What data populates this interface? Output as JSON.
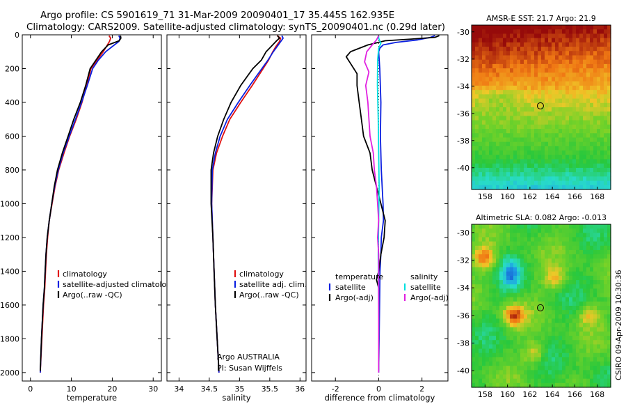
{
  "header": {
    "line1": "Argo profile: CS 5901619_71 31-Mar-2009 20090401_17 35.445S 162.935E",
    "line2": "Climatology: CARS2009. Satellite-adjusted climatology: synTS_20090401.nc (0.29d later)"
  },
  "credits": {
    "argo": "Argo AUSTRALIA",
    "pi": "PI: Susan Wijffels",
    "stamp": "CSIRO 09-Apr-2009 10:30:36"
  },
  "colors": {
    "red": "#e01010",
    "blue": "#0a1fe0",
    "black": "#000000",
    "cyan": "#00e0e0",
    "magenta": "#e020e0"
  },
  "chart_data": [
    {
      "type": "line",
      "panel": "temperature",
      "xlabel": "temperature",
      "ylabel": "",
      "xlim": [
        -2,
        32
      ],
      "ylim": [
        2050,
        0
      ],
      "y_reversed": true,
      "xticks": [
        0,
        10,
        20,
        30
      ],
      "yticks": [
        0,
        200,
        400,
        600,
        800,
        1000,
        1200,
        1400,
        1600,
        1800,
        2000
      ],
      "legend": [
        "climatology",
        "satellite-adjusted climatology",
        "Argo(..raw -QC)"
      ],
      "legend_position": "lower-right",
      "series": [
        {
          "name": "climatology",
          "color": "red",
          "points": [
            [
              19.2,
              5
            ],
            [
              19.6,
              20
            ],
            [
              19.3,
              40
            ],
            [
              18.8,
              60
            ],
            [
              17.8,
              100
            ],
            [
              16.3,
              150
            ],
            [
              14.8,
              200
            ],
            [
              13.7,
              300
            ],
            [
              12.6,
              400
            ],
            [
              11.2,
              500
            ],
            [
              9.6,
              600
            ],
            [
              8.2,
              700
            ],
            [
              6.9,
              800
            ],
            [
              6.0,
              900
            ],
            [
              5.3,
              1000
            ],
            [
              4.6,
              1100
            ],
            [
              4.2,
              1200
            ],
            [
              3.9,
              1300
            ],
            [
              3.7,
              1400
            ],
            [
              3.5,
              1500
            ],
            [
              3.2,
              1600
            ],
            [
              2.8,
              1800
            ],
            [
              2.4,
              2000
            ]
          ]
        },
        {
          "name": "satellite-adjusted climatology",
          "color": "blue",
          "points": [
            [
              21.6,
              5
            ],
            [
              21.9,
              20
            ],
            [
              21.6,
              40
            ],
            [
              20.5,
              60
            ],
            [
              18.4,
              100
            ],
            [
              16.6,
              150
            ],
            [
              15.2,
              200
            ],
            [
              13.9,
              300
            ],
            [
              12.5,
              400
            ],
            [
              11.0,
              500
            ],
            [
              9.5,
              600
            ],
            [
              8.0,
              700
            ],
            [
              6.8,
              800
            ],
            [
              5.9,
              900
            ],
            [
              5.2,
              1000
            ],
            [
              4.6,
              1100
            ],
            [
              4.1,
              1200
            ],
            [
              3.8,
              1300
            ],
            [
              3.6,
              1400
            ],
            [
              3.4,
              1500
            ],
            [
              3.1,
              1600
            ],
            [
              2.7,
              1800
            ],
            [
              2.4,
              2000
            ]
          ]
        },
        {
          "name": "Argo(..raw -QC)",
          "color": "black",
          "points": [
            [
              22.0,
              5
            ],
            [
              22.1,
              20
            ],
            [
              21.7,
              35
            ],
            [
              19.0,
              60
            ],
            [
              17.4,
              100
            ],
            [
              16.0,
              150
            ],
            [
              14.6,
              200
            ],
            [
              13.5,
              300
            ],
            [
              12.2,
              400
            ],
            [
              10.6,
              500
            ],
            [
              9.2,
              600
            ],
            [
              7.8,
              700
            ],
            [
              6.6,
              800
            ],
            [
              5.8,
              900
            ],
            [
              5.2,
              1000
            ],
            [
              4.6,
              1100
            ],
            [
              4.1,
              1200
            ],
            [
              3.8,
              1300
            ],
            [
              3.6,
              1400
            ],
            [
              3.4,
              1500
            ],
            [
              3.1,
              1600
            ],
            [
              2.7,
              1800
            ],
            [
              2.4,
              1990
            ]
          ]
        }
      ]
    },
    {
      "type": "line",
      "panel": "salinity",
      "xlabel": "salinity",
      "ylabel": "",
      "xlim": [
        33.8,
        36.1
      ],
      "ylim": [
        2050,
        0
      ],
      "y_reversed": true,
      "xticks": [
        34,
        34.5,
        35,
        35.5,
        36
      ],
      "legend": [
        "climatology",
        "satellite adj. clim.",
        "Argo(..raw -QC)"
      ],
      "legend_position": "lower-right",
      "series": [
        {
          "name": "climatology",
          "color": "red",
          "points": [
            [
              35.62,
              5
            ],
            [
              35.68,
              20
            ],
            [
              35.66,
              40
            ],
            [
              35.6,
              70
            ],
            [
              35.55,
              100
            ],
            [
              35.48,
              150
            ],
            [
              35.39,
              200
            ],
            [
              35.21,
              300
            ],
            [
              35.02,
              400
            ],
            [
              34.84,
              500
            ],
            [
              34.72,
              600
            ],
            [
              34.62,
              700
            ],
            [
              34.56,
              800
            ],
            [
              34.54,
              1000
            ],
            [
              34.56,
              1200
            ],
            [
              34.58,
              1400
            ],
            [
              34.6,
              1600
            ],
            [
              34.63,
              1800
            ],
            [
              34.66,
              2000
            ]
          ]
        },
        {
          "name": "satellite adj. clim.",
          "color": "blue",
          "points": [
            [
              35.7,
              5
            ],
            [
              35.72,
              20
            ],
            [
              35.68,
              40
            ],
            [
              35.62,
              70
            ],
            [
              35.56,
              100
            ],
            [
              35.47,
              150
            ],
            [
              35.37,
              200
            ],
            [
              35.17,
              300
            ],
            [
              34.98,
              400
            ],
            [
              34.8,
              500
            ],
            [
              34.68,
              600
            ],
            [
              34.6,
              700
            ],
            [
              34.55,
              800
            ],
            [
              34.54,
              1000
            ],
            [
              34.56,
              1200
            ],
            [
              34.58,
              1400
            ],
            [
              34.6,
              1600
            ],
            [
              34.63,
              1800
            ],
            [
              34.66,
              2000
            ]
          ]
        },
        {
          "name": "Argo(..raw -QC)",
          "color": "black",
          "points": [
            [
              35.63,
              5
            ],
            [
              35.66,
              20
            ],
            [
              35.6,
              40
            ],
            [
              35.52,
              70
            ],
            [
              35.44,
              100
            ],
            [
              35.36,
              150
            ],
            [
              35.22,
              200
            ],
            [
              35.02,
              300
            ],
            [
              34.86,
              400
            ],
            [
              34.74,
              500
            ],
            [
              34.64,
              600
            ],
            [
              34.57,
              700
            ],
            [
              34.53,
              800
            ],
            [
              34.53,
              1000
            ],
            [
              34.56,
              1200
            ],
            [
              34.58,
              1400
            ],
            [
              34.6,
              1600
            ],
            [
              34.63,
              1800
            ],
            [
              34.66,
              1990
            ]
          ]
        }
      ]
    },
    {
      "type": "line",
      "panel": "difference",
      "xlabel": "difference from climatology",
      "ylabel": "",
      "xlim": [
        -3.1,
        3.2
      ],
      "ylim": [
        2050,
        0
      ],
      "y_reversed": true,
      "xticks": [
        -2,
        0,
        2
      ],
      "legend_columns": [
        {
          "title": "temperature",
          "items": [
            "satellite",
            "Argo(-adj)"
          ]
        },
        {
          "title": "salinity",
          "items": [
            "satellite",
            "Argo(-adj)"
          ]
        }
      ],
      "legend_position": "lower-center",
      "series": [
        {
          "name": "temperature satellite",
          "color": "blue",
          "points": [
            [
              2.6,
              5
            ],
            [
              2.4,
              15
            ],
            [
              1.8,
              30
            ],
            [
              0.8,
              45
            ],
            [
              0.2,
              60
            ],
            [
              0.05,
              80
            ],
            [
              0.0,
              100
            ],
            [
              0.05,
              200
            ],
            [
              0.1,
              400
            ],
            [
              0.08,
              600
            ],
            [
              0.12,
              800
            ],
            [
              0.2,
              1000
            ],
            [
              0.22,
              1100
            ],
            [
              0.12,
              1200
            ],
            [
              0.1,
              1300
            ],
            [
              0.06,
              1400
            ],
            [
              0.04,
              1600
            ],
            [
              0.02,
              1800
            ],
            [
              0.0,
              2000
            ]
          ]
        },
        {
          "name": "temperature Argo(-adj)",
          "color": "black",
          "points": [
            [
              2.8,
              5
            ],
            [
              2.6,
              15
            ],
            [
              1.5,
              25
            ],
            [
              0.3,
              35
            ],
            [
              -0.5,
              60
            ],
            [
              -1.3,
              100
            ],
            [
              -1.5,
              130
            ],
            [
              -1.3,
              170
            ],
            [
              -1.0,
              230
            ],
            [
              -1.0,
              300
            ],
            [
              -0.9,
              400
            ],
            [
              -0.8,
              500
            ],
            [
              -0.7,
              600
            ],
            [
              -0.4,
              700
            ],
            [
              -0.3,
              800
            ],
            [
              -0.1,
              900
            ],
            [
              0.1,
              1000
            ],
            [
              0.3,
              1100
            ],
            [
              0.25,
              1200
            ],
            [
              0.1,
              1300
            ],
            [
              0.0,
              1400
            ],
            [
              -0.1,
              1450
            ],
            [
              0.0,
              1500
            ],
            [
              0.0,
              1600
            ],
            [
              0.0,
              1800
            ],
            [
              0.0,
              1990
            ]
          ]
        },
        {
          "name": "salinity satellite",
          "color": "cyan",
          "points": [
            [
              0.0,
              5
            ],
            [
              0.0,
              20
            ],
            [
              0.1,
              50
            ],
            [
              0.0,
              80
            ],
            [
              -0.05,
              150
            ],
            [
              -0.06,
              300
            ],
            [
              -0.02,
              500
            ],
            [
              0.0,
              700
            ],
            [
              0.02,
              900
            ],
            [
              0.0,
              1100
            ],
            [
              -0.02,
              1300
            ],
            [
              -0.01,
              1500
            ],
            [
              0.0,
              1700
            ],
            [
              0.0,
              2000
            ]
          ]
        },
        {
          "name": "salinity Argo(-adj)",
          "color": "magenta",
          "points": [
            [
              0.0,
              5
            ],
            [
              -0.1,
              30
            ],
            [
              -0.3,
              60
            ],
            [
              -0.55,
              100
            ],
            [
              -0.65,
              160
            ],
            [
              -0.45,
              220
            ],
            [
              -0.6,
              300
            ],
            [
              -0.5,
              400
            ],
            [
              -0.45,
              500
            ],
            [
              -0.4,
              600
            ],
            [
              -0.25,
              700
            ],
            [
              -0.2,
              800
            ],
            [
              -0.1,
              900
            ],
            [
              -0.05,
              1000
            ],
            [
              0.0,
              1100
            ],
            [
              -0.05,
              1200
            ],
            [
              0.0,
              1300
            ],
            [
              0.0,
              1500
            ],
            [
              0.0,
              1700
            ],
            [
              0.0,
              2000
            ]
          ]
        }
      ]
    },
    {
      "type": "heatmap",
      "panel": "sst-map",
      "title": "AMSR-E SST: 21.7 Argo: 21.9",
      "xlim": [
        156.8,
        169.2
      ],
      "ylim": [
        -41.6,
        -29.5
      ],
      "xticks": [
        158,
        160,
        162,
        164,
        166,
        168
      ],
      "yticks": [
        -30,
        -32,
        -34,
        -36,
        -38,
        -40
      ],
      "marker": {
        "lon": 162.935,
        "lat": -35.445
      }
    },
    {
      "type": "heatmap",
      "panel": "sla-map",
      "title": "Altimetric SLA: 0.082 Argo: -0.013",
      "xlim": [
        156.8,
        169.2
      ],
      "ylim": [
        -41.2,
        -29.4
      ],
      "xticks": [
        158,
        160,
        162,
        164,
        166,
        168
      ],
      "yticks": [
        -30,
        -32,
        -34,
        -36,
        -38,
        -40
      ],
      "marker": {
        "lon": 162.935,
        "lat": -35.445
      }
    }
  ]
}
